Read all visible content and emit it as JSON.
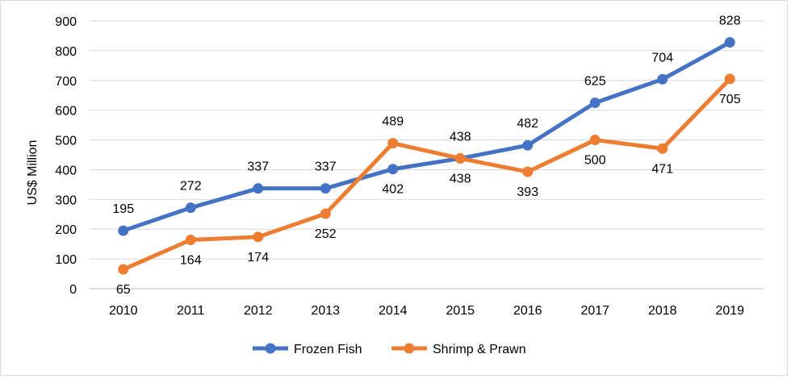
{
  "chart_data": {
    "type": "line",
    "categories": [
      "2010",
      "2011",
      "2012",
      "2013",
      "2014",
      "2015",
      "2016",
      "2017",
      "2018",
      "2019"
    ],
    "ylabel": "US$ Million",
    "xlabel": "",
    "title": "",
    "ylim": [
      0,
      900
    ],
    "yticks": [
      0,
      100,
      200,
      300,
      400,
      500,
      600,
      700,
      800,
      900
    ],
    "grid": true,
    "legend_position": "bottom",
    "series": [
      {
        "name": "Frozen Fish",
        "color": "#4472C4",
        "values": [
          195,
          272,
          337,
          337,
          402,
          438,
          482,
          625,
          704,
          828
        ]
      },
      {
        "name": "Shrimp & Prawn",
        "color": "#ED7D31",
        "values": [
          65,
          164,
          174,
          252,
          489,
          438,
          393,
          500,
          471,
          705
        ]
      }
    ]
  }
}
